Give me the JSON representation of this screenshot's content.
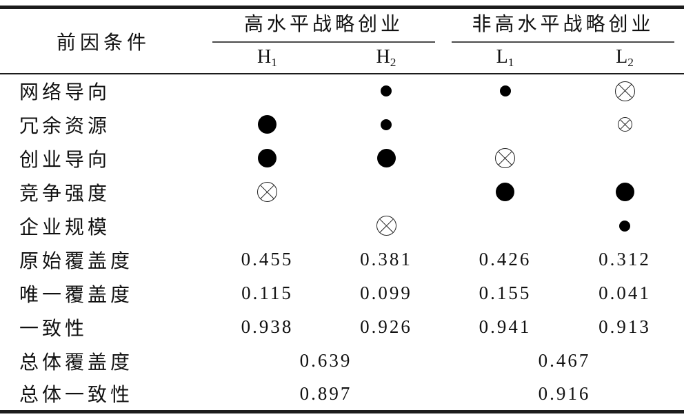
{
  "colors": {
    "background": "#ffffff",
    "text": "#111111",
    "rule": "#1c1c1c"
  },
  "table": {
    "corner_header": "前因条件",
    "groups": [
      {
        "label": "高水平战略创业",
        "columns": [
          {
            "name": "H",
            "sub": "1"
          },
          {
            "name": "H",
            "sub": "2"
          }
        ]
      },
      {
        "label": "非高水平战略创业",
        "columns": [
          {
            "name": "L",
            "sub": "1"
          },
          {
            "name": "L",
            "sub": "2"
          }
        ]
      }
    ],
    "symbol_names": {
      "dot-large": "large-filled-circle-icon",
      "dot-small": "small-filled-circle-icon",
      "cross-large": "large-crossed-circle-icon",
      "cross-small": "small-crossed-circle-icon"
    },
    "rows": [
      {
        "label": "网络导向",
        "type": "symbol",
        "cells": [
          "",
          "dot-small",
          "dot-small",
          "cross-large"
        ]
      },
      {
        "label": "冗余资源",
        "type": "symbol",
        "cells": [
          "dot-large",
          "dot-small",
          "",
          "cross-small"
        ]
      },
      {
        "label": "创业导向",
        "type": "symbol",
        "cells": [
          "dot-large",
          "dot-large",
          "cross-large",
          ""
        ]
      },
      {
        "label": "竞争强度",
        "type": "symbol",
        "cells": [
          "cross-large",
          "",
          "dot-large",
          "dot-large"
        ]
      },
      {
        "label": "企业规模",
        "type": "symbol",
        "cells": [
          "",
          "cross-large",
          "",
          "dot-small"
        ]
      },
      {
        "label": "原始覆盖度",
        "type": "number",
        "cells": [
          "0.455",
          "0.381",
          "0.426",
          "0.312"
        ]
      },
      {
        "label": "唯一覆盖度",
        "type": "number",
        "cells": [
          "0.115",
          "0.099",
          "0.155",
          "0.041"
        ]
      },
      {
        "label": "一致性",
        "type": "number",
        "cells": [
          "0.938",
          "0.926",
          "0.941",
          "0.913"
        ]
      },
      {
        "label": "总体覆盖度",
        "type": "number-span",
        "cells": [
          "0.639",
          "0.467"
        ]
      },
      {
        "label": "总体一致性",
        "type": "number-span",
        "cells": [
          "0.897",
          "0.916"
        ]
      }
    ]
  }
}
